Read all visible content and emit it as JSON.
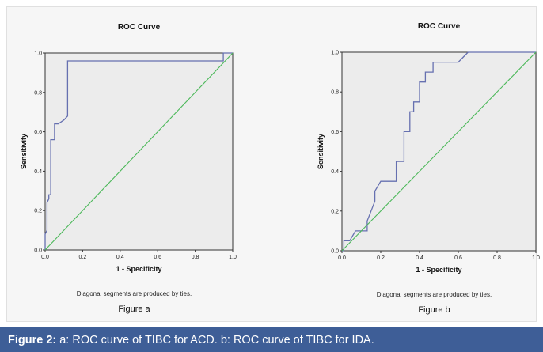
{
  "caption": {
    "label": "Figure 2:",
    "text": "a: ROC curve of TIBC for ACD. b: ROC curve of TIBC for IDA."
  },
  "colors": {
    "roc_line": "#6670b0",
    "diagonal": "#4cb85a",
    "plot_bg": "#ececec",
    "caption_bg": "#3e5e97"
  },
  "chart_data": [
    {
      "type": "line",
      "title": "ROC Curve",
      "xlabel": "1 - Specificity",
      "ylabel": "Sensitivity",
      "xlim": [
        0,
        1
      ],
      "ylim": [
        0,
        1
      ],
      "x_ticks": [
        "0.0",
        "0.2",
        "0.4",
        "0.6",
        "0.8",
        "1.0"
      ],
      "y_ticks": [
        "0.0",
        "0.2",
        "0.4",
        "0.6",
        "0.8",
        "1.0"
      ],
      "grid": false,
      "note": "Diagonal segments are produced by ties.",
      "sublabel": "Figure a",
      "series": [
        {
          "x": [
            0,
            0,
            0.01,
            0.01,
            0.02,
            0.02,
            0.03,
            0.03,
            0.05,
            0.05,
            0.07,
            0.07,
            0.1,
            0.12,
            0.12,
            0.95,
            0.95,
            1
          ],
          "y": [
            0,
            0.08,
            0.1,
            0.24,
            0.26,
            0.28,
            0.28,
            0.56,
            0.56,
            0.64,
            0.64,
            0.64,
            0.66,
            0.68,
            0.96,
            0.96,
            1,
            1
          ]
        },
        {
          "x": [
            0,
            1
          ],
          "y": [
            0,
            1
          ]
        }
      ]
    },
    {
      "type": "line",
      "title": "ROC Curve",
      "xlabel": "1 - Specificity",
      "ylabel": "Sensitivity",
      "xlim": [
        0,
        1
      ],
      "ylim": [
        0,
        1
      ],
      "x_ticks": [
        "0.0",
        "0.2",
        "0.4",
        "0.6",
        "0.8",
        "1.0"
      ],
      "y_ticks": [
        "0.0",
        "0.2",
        "0.4",
        "0.6",
        "0.8",
        "1.0"
      ],
      "grid": false,
      "note": "Diagonal segments are produced by ties.",
      "sublabel": "Figure b",
      "series": [
        {
          "x": [
            0,
            0.01,
            0.01,
            0.04,
            0.07,
            0.08,
            0.1,
            0.13,
            0.13,
            0.15,
            0.17,
            0.17,
            0.2,
            0.28,
            0.28,
            0.32,
            0.32,
            0.35,
            0.35,
            0.37,
            0.37,
            0.4,
            0.4,
            0.43,
            0.43,
            0.47,
            0.47,
            0.6,
            0.63,
            0.65,
            1
          ],
          "y": [
            0,
            0,
            0.05,
            0.05,
            0.1,
            0.1,
            0.1,
            0.1,
            0.15,
            0.2,
            0.25,
            0.3,
            0.35,
            0.35,
            0.45,
            0.45,
            0.6,
            0.6,
            0.7,
            0.7,
            0.75,
            0.75,
            0.85,
            0.85,
            0.9,
            0.9,
            0.95,
            0.95,
            0.98,
            1,
            1
          ]
        },
        {
          "x": [
            0,
            1
          ],
          "y": [
            0,
            1
          ]
        }
      ]
    }
  ]
}
